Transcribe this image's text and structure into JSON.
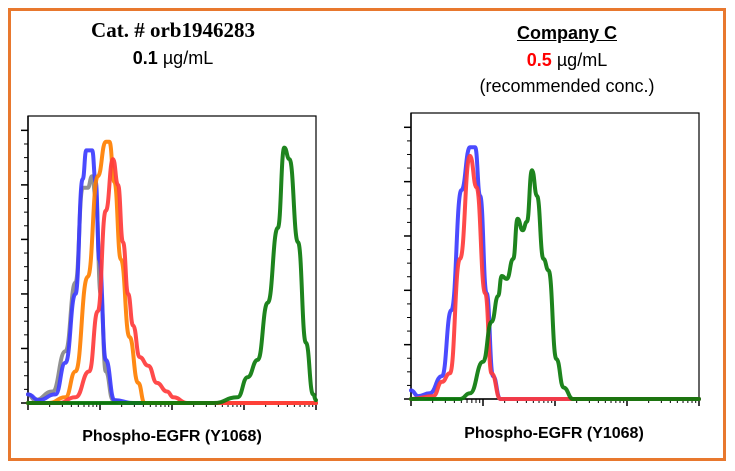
{
  "chart_data": [
    {
      "type": "line",
      "title": "Cat. # orb1946283",
      "conc_value": "0.1",
      "conc_unit": " µg/mL",
      "xlabel": "Phospho-EGFR (Y1068)",
      "ylabel": "",
      "x_scale": "log",
      "xlim_decades": [
        0,
        4
      ],
      "ylim": [
        0,
        100
      ],
      "grid": false,
      "series": [
        {
          "color": "#888888",
          "x": [
            0,
            0.1,
            0.34,
            0.52,
            0.66,
            0.76,
            0.83,
            0.89,
            0.94,
            1.01,
            1.08,
            1.18,
            1.36,
            4
          ],
          "y": [
            3,
            1,
            4,
            18,
            42,
            75,
            75,
            79,
            72,
            38,
            11,
            1,
            0,
            0
          ]
        },
        {
          "color": "#3c3cff",
          "x": [
            0,
            0.15,
            0.38,
            0.52,
            0.66,
            0.76,
            0.81,
            0.89,
            0.94,
            0.99,
            1.08,
            1.2,
            1.46,
            4
          ],
          "y": [
            3,
            1,
            3,
            14,
            38,
            78,
            88,
            88,
            77,
            50,
            15,
            1,
            0,
            0
          ]
        },
        {
          "color": "#ff7f00",
          "x": [
            0,
            0.29,
            0.52,
            0.66,
            0.83,
            0.97,
            1.08,
            1.13,
            1.2,
            1.29,
            1.41,
            1.53,
            1.62,
            1.79,
            4
          ],
          "y": [
            0,
            0,
            2,
            11,
            44,
            79,
            91,
            91,
            77,
            50,
            23,
            7,
            0,
            0,
            0
          ]
        },
        {
          "color": "#ff3b3b",
          "x": [
            0,
            0.43,
            0.66,
            0.85,
            0.97,
            1.08,
            1.18,
            1.25,
            1.32,
            1.39,
            1.46,
            1.55,
            1.67,
            1.79,
            1.93,
            2.02,
            2.21,
            4
          ],
          "y": [
            0,
            0,
            2,
            11,
            32,
            67,
            85,
            76,
            56,
            38,
            27,
            16,
            13,
            7,
            4,
            2,
            0,
            0
          ]
        },
        {
          "color": "#0b7a0b",
          "x": [
            0,
            2.58,
            2.91,
            3.05,
            3.19,
            3.33,
            3.47,
            3.56,
            3.63,
            3.75,
            3.86,
            3.96,
            4
          ],
          "y": [
            0,
            0,
            2,
            9,
            15,
            35,
            61,
            89,
            85,
            56,
            21,
            3,
            1
          ]
        }
      ]
    },
    {
      "type": "line",
      "title": "Company C",
      "conc_value": "0.5",
      "conc_unit": " µg/mL",
      "note": "(recommended conc.)",
      "xlabel": "Phospho-EGFR (Y1068)",
      "ylabel": "",
      "x_scale": "log",
      "xlim_decades": [
        0,
        4
      ],
      "ylim": [
        0,
        100
      ],
      "grid": false,
      "series": [
        {
          "color": "#3c3cff",
          "x": [
            0,
            0.1,
            0.26,
            0.43,
            0.56,
            0.7,
            0.82,
            0.89,
            0.96,
            1.05,
            1.14,
            1.24,
            1.47,
            4
          ],
          "y": [
            3,
            1,
            2,
            8,
            31,
            73,
            88,
            88,
            71,
            37,
            8,
            0,
            0,
            0
          ]
        },
        {
          "color": "#ff3b3b",
          "x": [
            0,
            0.31,
            0.43,
            0.54,
            0.68,
            0.82,
            0.91,
            1.03,
            1.12,
            1.24,
            4
          ],
          "y": [
            0,
            1,
            6,
            9,
            49,
            85,
            74,
            37,
            9,
            0,
            0
          ]
        },
        {
          "color": "#0b7a0b",
          "x": [
            0,
            0.68,
            0.82,
            1.0,
            1.12,
            1.21,
            1.26,
            1.33,
            1.42,
            1.48,
            1.55,
            1.61,
            1.68,
            1.75,
            1.84,
            1.91,
            2.02,
            2.12,
            2.25,
            4
          ],
          "y": [
            0,
            0,
            2,
            13,
            27,
            36,
            43,
            42,
            49,
            63,
            59,
            62,
            80,
            71,
            49,
            45,
            14,
            4,
            0,
            0
          ]
        }
      ]
    }
  ],
  "colors": {
    "frame": "#e8782e",
    "highlight": "#ff0000"
  }
}
